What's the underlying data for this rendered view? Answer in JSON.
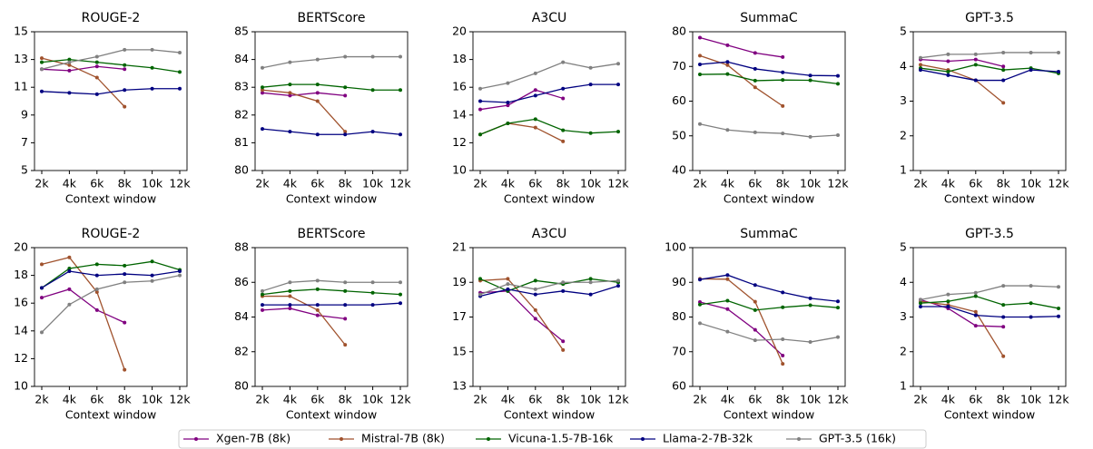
{
  "chart_data": [
    {
      "type": "line",
      "title": "ROUGE-2",
      "x_label": "Context window",
      "categories": [
        "2k",
        "4k",
        "6k",
        "8k",
        "10k",
        "12k"
      ],
      "ylim": [
        5,
        15
      ],
      "yticks": [
        5,
        7,
        9,
        11,
        13,
        15
      ],
      "series": [
        {
          "name": "Xgen-7B (8k)",
          "color": "#800080",
          "values": [
            12.3,
            12.2,
            12.5,
            12.3,
            null,
            null
          ]
        },
        {
          "name": "Mistral-7B (8k)",
          "color": "#a0522d",
          "values": [
            13.1,
            12.6,
            11.7,
            9.6,
            null,
            null
          ]
        },
        {
          "name": "Vicuna-1.5-7B-16k",
          "color": "#006400",
          "values": [
            12.8,
            13.0,
            12.8,
            12.6,
            12.4,
            12.1
          ]
        },
        {
          "name": "Llama-2-7B-32k",
          "color": "#000080",
          "values": [
            10.7,
            10.6,
            10.5,
            10.8,
            10.9,
            10.9
          ]
        },
        {
          "name": "GPT-3.5 (16k)",
          "color": "#808080",
          "values": [
            12.3,
            12.8,
            13.2,
            13.7,
            13.7,
            13.5
          ]
        }
      ]
    },
    {
      "type": "line",
      "title": "BERTScore",
      "x_label": "Context window",
      "categories": [
        "2k",
        "4k",
        "6k",
        "8k",
        "10k",
        "12k"
      ],
      "ylim": [
        80,
        85
      ],
      "yticks": [
        80,
        81,
        82,
        83,
        84,
        85
      ],
      "series": [
        {
          "color": "#800080",
          "values": [
            82.8,
            82.7,
            82.8,
            82.7,
            null,
            null
          ]
        },
        {
          "color": "#a0522d",
          "values": [
            82.9,
            82.8,
            82.5,
            81.4,
            null,
            null
          ]
        },
        {
          "color": "#006400",
          "values": [
            83.0,
            83.1,
            83.1,
            83.0,
            82.9,
            82.9
          ]
        },
        {
          "color": "#000080",
          "values": [
            81.5,
            81.4,
            81.3,
            81.3,
            81.4,
            81.3
          ]
        },
        {
          "color": "#808080",
          "values": [
            83.7,
            83.9,
            84.0,
            84.1,
            84.1,
            84.1
          ]
        }
      ]
    },
    {
      "type": "line",
      "title": "A3CU",
      "x_label": "Context window",
      "categories": [
        "2k",
        "4k",
        "6k",
        "8k",
        "10k",
        "12k"
      ],
      "ylim": [
        10,
        20
      ],
      "yticks": [
        10,
        12,
        14,
        16,
        18,
        20
      ],
      "series": [
        {
          "color": "#800080",
          "values": [
            14.4,
            14.7,
            15.8,
            15.2,
            null,
            null
          ]
        },
        {
          "color": "#a0522d",
          "values": [
            12.6,
            13.4,
            13.1,
            12.1,
            null,
            null
          ]
        },
        {
          "color": "#006400",
          "values": [
            12.6,
            13.4,
            13.7,
            12.9,
            12.7,
            12.8
          ]
        },
        {
          "color": "#000080",
          "values": [
            15.0,
            14.9,
            15.4,
            15.9,
            16.2,
            16.2
          ]
        },
        {
          "color": "#808080",
          "values": [
            15.9,
            16.3,
            17.0,
            17.8,
            17.4,
            17.7
          ]
        }
      ]
    },
    {
      "type": "line",
      "title": "SummaC",
      "x_label": "Context window",
      "categories": [
        "2k",
        "4k",
        "6k",
        "8k",
        "10k",
        "12k"
      ],
      "ylim": [
        40,
        80
      ],
      "yticks": [
        40,
        50,
        60,
        70,
        80
      ],
      "series": [
        {
          "color": "#800080",
          "values": [
            78.3,
            76.1,
            73.9,
            72.7,
            null,
            null
          ]
        },
        {
          "color": "#a0522d",
          "values": [
            73.1,
            70.4,
            64.0,
            58.6,
            null,
            null
          ]
        },
        {
          "color": "#006400",
          "values": [
            67.7,
            67.8,
            65.9,
            66.1,
            66.0,
            65.0
          ]
        },
        {
          "color": "#000080",
          "values": [
            70.6,
            71.3,
            69.3,
            68.3,
            67.4,
            67.3
          ]
        },
        {
          "color": "#808080",
          "values": [
            53.4,
            51.7,
            51.0,
            50.7,
            49.7,
            50.2
          ]
        }
      ]
    },
    {
      "type": "line",
      "title": "GPT-3.5",
      "x_label": "Context window",
      "categories": [
        "2k",
        "4k",
        "6k",
        "8k",
        "10k",
        "12k"
      ],
      "ylim": [
        1,
        5
      ],
      "yticks": [
        1,
        2,
        3,
        4,
        5
      ],
      "series": [
        {
          "color": "#800080",
          "values": [
            4.2,
            4.15,
            4.2,
            4.0,
            null,
            null
          ]
        },
        {
          "color": "#a0522d",
          "values": [
            4.05,
            3.9,
            3.6,
            2.95,
            null,
            null
          ]
        },
        {
          "color": "#006400",
          "values": [
            3.95,
            3.85,
            4.05,
            3.9,
            3.95,
            3.8
          ]
        },
        {
          "color": "#000080",
          "values": [
            3.9,
            3.75,
            3.6,
            3.6,
            3.9,
            3.85
          ]
        },
        {
          "color": "#808080",
          "values": [
            4.25,
            4.35,
            4.35,
            4.4,
            4.4,
            4.4
          ]
        }
      ]
    },
    {
      "type": "line",
      "title": "ROUGE-2",
      "x_label": "Context window",
      "categories": [
        "2k",
        "4k",
        "6k",
        "8k",
        "10k",
        "12k"
      ],
      "ylim": [
        10,
        20
      ],
      "yticks": [
        10,
        12,
        14,
        16,
        18,
        20
      ],
      "series": [
        {
          "color": "#800080",
          "values": [
            16.4,
            17.0,
            15.5,
            14.6,
            null,
            null
          ]
        },
        {
          "color": "#a0522d",
          "values": [
            18.8,
            19.3,
            16.8,
            11.2,
            null,
            null
          ]
        },
        {
          "color": "#006400",
          "values": [
            17.1,
            18.5,
            18.8,
            18.7,
            19.0,
            18.4
          ]
        },
        {
          "color": "#000080",
          "values": [
            17.1,
            18.3,
            18.0,
            18.1,
            18.0,
            18.3
          ]
        },
        {
          "color": "#808080",
          "values": [
            13.9,
            15.9,
            17.0,
            17.5,
            17.6,
            18.0
          ]
        }
      ]
    },
    {
      "type": "line",
      "title": "BERTScore",
      "x_label": "Context window",
      "categories": [
        "2k",
        "4k",
        "6k",
        "8k",
        "10k",
        "12k"
      ],
      "ylim": [
        80,
        88
      ],
      "yticks": [
        80,
        82,
        84,
        86,
        88
      ],
      "series": [
        {
          "color": "#800080",
          "values": [
            84.4,
            84.5,
            84.1,
            83.9,
            null,
            null
          ]
        },
        {
          "color": "#a0522d",
          "values": [
            85.2,
            85.2,
            84.4,
            82.4,
            null,
            null
          ]
        },
        {
          "color": "#006400",
          "values": [
            85.3,
            85.5,
            85.6,
            85.5,
            85.4,
            85.3
          ]
        },
        {
          "color": "#000080",
          "values": [
            84.7,
            84.7,
            84.7,
            84.7,
            84.7,
            84.8
          ]
        },
        {
          "color": "#808080",
          "values": [
            85.5,
            86.0,
            86.1,
            86.0,
            86.0,
            86.0
          ]
        }
      ]
    },
    {
      "type": "line",
      "title": "A3CU",
      "x_label": "Context window",
      "categories": [
        "2k",
        "4k",
        "6k",
        "8k",
        "10k",
        "12k"
      ],
      "ylim": [
        13,
        21
      ],
      "yticks": [
        13,
        15,
        17,
        19,
        21
      ],
      "series": [
        {
          "color": "#800080",
          "values": [
            18.4,
            18.5,
            16.9,
            15.6,
            null,
            null
          ]
        },
        {
          "color": "#a0522d",
          "values": [
            19.1,
            19.2,
            17.4,
            15.1,
            null,
            null
          ]
        },
        {
          "color": "#006400",
          "values": [
            19.2,
            18.5,
            19.1,
            18.9,
            19.2,
            19.0
          ]
        },
        {
          "color": "#000080",
          "values": [
            18.2,
            18.6,
            18.3,
            18.5,
            18.3,
            18.8
          ]
        },
        {
          "color": "#808080",
          "values": [
            18.3,
            18.9,
            18.6,
            19.0,
            19.0,
            19.1
          ]
        }
      ]
    },
    {
      "type": "line",
      "title": "SummaC",
      "x_label": "Context window",
      "categories": [
        "2k",
        "4k",
        "6k",
        "8k",
        "10k",
        "12k"
      ],
      "ylim": [
        60,
        100
      ],
      "yticks": [
        60,
        70,
        80,
        90,
        100
      ],
      "series": [
        {
          "color": "#800080",
          "values": [
            84.3,
            82.3,
            76.3,
            68.9,
            null,
            null
          ]
        },
        {
          "color": "#a0522d",
          "values": [
            91.0,
            90.9,
            84.4,
            66.5,
            null,
            null
          ]
        },
        {
          "color": "#006400",
          "values": [
            83.6,
            84.7,
            82.0,
            82.8,
            83.4,
            82.7
          ]
        },
        {
          "color": "#000080",
          "values": [
            90.8,
            92.1,
            89.2,
            87.1,
            85.4,
            84.5
          ]
        },
        {
          "color": "#808080",
          "values": [
            78.2,
            75.8,
            73.3,
            73.6,
            72.8,
            74.2
          ]
        }
      ]
    },
    {
      "type": "line",
      "title": "GPT-3.5",
      "x_label": "Context window",
      "categories": [
        "2k",
        "4k",
        "6k",
        "8k",
        "10k",
        "12k"
      ],
      "ylim": [
        1,
        5
      ],
      "yticks": [
        1,
        2,
        3,
        4,
        5
      ],
      "series": [
        {
          "color": "#800080",
          "values": [
            3.5,
            3.25,
            2.75,
            2.72,
            null,
            null
          ]
        },
        {
          "color": "#a0522d",
          "values": [
            3.45,
            3.35,
            3.15,
            1.87,
            null,
            null
          ]
        },
        {
          "color": "#006400",
          "values": [
            3.4,
            3.45,
            3.6,
            3.35,
            3.4,
            3.25
          ]
        },
        {
          "color": "#000080",
          "values": [
            3.3,
            3.3,
            3.05,
            3.0,
            3.0,
            3.02
          ]
        },
        {
          "color": "#808080",
          "values": [
            3.5,
            3.65,
            3.7,
            3.9,
            3.9,
            3.87
          ]
        }
      ]
    }
  ]
}
